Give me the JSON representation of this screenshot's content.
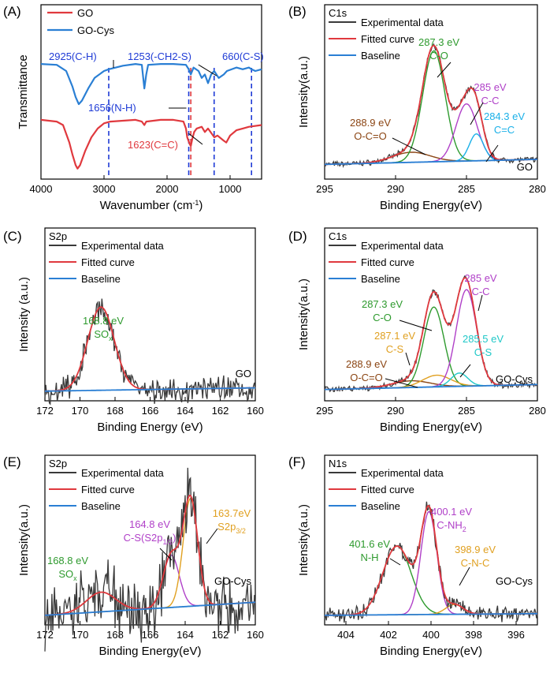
{
  "figure": {
    "description": "Six-panel spectroscopy figure: FTIR of GO and GO-Cys, and XPS high-resolution spectra",
    "colors": {
      "experimental": "#3a3a3a",
      "fitted": "#e0393e",
      "baseline": "#2a7fd4",
      "go": "#e0393e",
      "gocys": "#2a7fd4",
      "guide": "#1f3bd6"
    }
  },
  "chart_data": [
    {
      "id": "A",
      "type": "line",
      "panel_label": "(A)",
      "xlabel": "Wavenumber (cm",
      "xlabel_sup": "-1",
      "xlabel_end": ")",
      "ylabel": "Transmittance",
      "xlim": [
        4000,
        500
      ],
      "ylim": [
        0,
        1
      ],
      "xticks": [
        4000,
        3000,
        2000,
        1000
      ],
      "legend": [
        {
          "name": "GO",
          "color": "#e0393e"
        },
        {
          "name": "GO-Cys",
          "color": "#2a7fd4"
        }
      ],
      "guides": [
        2925,
        1656,
        1623,
        1253,
        660
      ],
      "annotations": [
        "2925(C-H)",
        "1253(-CH2-S)",
        "660(C-S)",
        "1656(N-H)",
        "1623(C=C)"
      ],
      "series": [
        {
          "name": "GO-Cys",
          "color": "#2a7fd4",
          "offset": 0.66,
          "points": [
            [
              4000,
              0.66
            ],
            [
              3750,
              0.655
            ],
            [
              3600,
              0.62
            ],
            [
              3500,
              0.53
            ],
            [
              3450,
              0.47
            ],
            [
              3400,
              0.43
            ],
            [
              3350,
              0.45
            ],
            [
              3250,
              0.52
            ],
            [
              3150,
              0.58
            ],
            [
              3000,
              0.62
            ],
            [
              2925,
              0.63
            ],
            [
              2700,
              0.65
            ],
            [
              2500,
              0.66
            ],
            [
              2400,
              0.655
            ],
            [
              2360,
              0.52
            ],
            [
              2330,
              0.6
            ],
            [
              2300,
              0.655
            ],
            [
              2100,
              0.66
            ],
            [
              1900,
              0.66
            ],
            [
              1700,
              0.655
            ],
            [
              1656,
              0.63
            ],
            [
              1623,
              0.6
            ],
            [
              1580,
              0.64
            ],
            [
              1500,
              0.62
            ],
            [
              1450,
              0.58
            ],
            [
              1400,
              0.6
            ],
            [
              1350,
              0.55
            ],
            [
              1300,
              0.6
            ],
            [
              1253,
              0.62
            ],
            [
              1180,
              0.58
            ],
            [
              1100,
              0.6
            ],
            [
              1050,
              0.62
            ],
            [
              900,
              0.64
            ],
            [
              800,
              0.63
            ],
            [
              700,
              0.64
            ],
            [
              660,
              0.63
            ],
            [
              600,
              0.62
            ],
            [
              500,
              0.63
            ]
          ]
        },
        {
          "name": "GO",
          "color": "#e0393e",
          "offset": 0.34,
          "points": [
            [
              4000,
              0.34
            ],
            [
              3750,
              0.33
            ],
            [
              3650,
              0.31
            ],
            [
              3550,
              0.21
            ],
            [
              3500,
              0.14
            ],
            [
              3450,
              0.08
            ],
            [
              3420,
              0.06
            ],
            [
              3380,
              0.08
            ],
            [
              3300,
              0.16
            ],
            [
              3200,
              0.24
            ],
            [
              3100,
              0.29
            ],
            [
              3000,
              0.32
            ],
            [
              2900,
              0.33
            ],
            [
              2500,
              0.34
            ],
            [
              2400,
              0.33
            ],
            [
              2360,
              0.31
            ],
            [
              2330,
              0.33
            ],
            [
              2100,
              0.34
            ],
            [
              1900,
              0.34
            ],
            [
              1740,
              0.33
            ],
            [
              1700,
              0.29
            ],
            [
              1680,
              0.24
            ],
            [
              1640,
              0.2
            ],
            [
              1623,
              0.19
            ],
            [
              1600,
              0.23
            ],
            [
              1570,
              0.27
            ],
            [
              1530,
              0.29
            ],
            [
              1450,
              0.3
            ],
            [
              1400,
              0.27
            ],
            [
              1350,
              0.29
            ],
            [
              1250,
              0.24
            ],
            [
              1200,
              0.25
            ],
            [
              1100,
              0.22
            ],
            [
              1060,
              0.21
            ],
            [
              1000,
              0.25
            ],
            [
              900,
              0.28
            ],
            [
              800,
              0.29
            ],
            [
              700,
              0.3
            ],
            [
              500,
              0.31
            ]
          ]
        }
      ]
    },
    {
      "id": "B",
      "type": "line",
      "panel_label": "(B)",
      "region": "C1s",
      "sample": "GO",
      "xlabel": "Binding Energy(eV)",
      "ylabel": "Intensity(a.u.)",
      "xlim": [
        295,
        280
      ],
      "ylim": [
        0,
        1
      ],
      "xticks": [
        295,
        290,
        285,
        280
      ],
      "legend": [
        "Experimental data",
        "Fitted curve",
        "Baseline"
      ],
      "peaks": [
        {
          "center": 288.9,
          "height": 0.06,
          "width": 1.6,
          "label": "288.9 eV",
          "bond": "O-C=O",
          "color": "#8b4513"
        },
        {
          "center": 287.3,
          "height": 0.66,
          "width": 0.95,
          "label": "287.3 eV",
          "bond": "C-O",
          "color": "#2e9a2e"
        },
        {
          "center": 285.0,
          "height": 0.34,
          "width": 0.9,
          "label": "285 eV",
          "bond": "C-C",
          "color": "#b040c8"
        },
        {
          "center": 284.3,
          "height": 0.16,
          "width": 0.6,
          "label": "284.3 eV",
          "bond": "C=C",
          "color": "#1ab0e8"
        }
      ],
      "baseline": [
        0.05,
        0.08
      ]
    },
    {
      "id": "C",
      "type": "line",
      "panel_label": "(C)",
      "region": "S2p",
      "sample": "GO",
      "xlabel": "Binding Energy (eV)",
      "ylabel": "Intensity (a.u.)",
      "xlim": [
        172,
        160
      ],
      "ylim": [
        0,
        1
      ],
      "xticks": [
        172,
        170,
        168,
        166,
        164,
        162,
        160
      ],
      "legend": [
        "Experimental data",
        "Fitted curve",
        "Baseline"
      ],
      "peaks": [
        {
          "center": 168.8,
          "height": 0.5,
          "width": 0.9,
          "label": "168.8 eV",
          "bond": "SO",
          "bond_sub": "x",
          "color": "#2e9a2e"
        }
      ],
      "baseline": [
        0.02,
        0.04
      ]
    },
    {
      "id": "D",
      "type": "line",
      "panel_label": "(D)",
      "region": "C1s",
      "sample": "GO-Cys",
      "xlabel": "Binding Energy(eV)",
      "ylabel": "Intensity(a.u.)",
      "xlim": [
        295,
        280
      ],
      "ylim": [
        0,
        1
      ],
      "xticks": [
        295,
        290,
        285,
        280
      ],
      "legend": [
        "Experimental data",
        "Fitted curve",
        "Baseline"
      ],
      "peaks": [
        {
          "center": 288.9,
          "height": 0.04,
          "width": 1.6,
          "label": "288.9 eV",
          "bond": "O-C=O",
          "color": "#8b4513"
        },
        {
          "center": 287.3,
          "height": 0.48,
          "width": 0.85,
          "label": "287.3 eV",
          "bond": "C-O",
          "color": "#2e9a2e"
        },
        {
          "center": 287.1,
          "height": 0.07,
          "width": 1.2,
          "label": "287.1 eV",
          "bond": "C-S",
          "color": "#e0a020"
        },
        {
          "center": 285.0,
          "height": 0.58,
          "width": 0.85,
          "label": "285 eV",
          "bond": "C-C",
          "color": "#b040c8"
        },
        {
          "center": 285.5,
          "height": 0.08,
          "width": 0.7,
          "label": "285.5 eV",
          "bond": "C-S",
          "color": "#20c8c8"
        }
      ],
      "baseline": [
        0.03,
        0.06
      ]
    },
    {
      "id": "E",
      "type": "line",
      "panel_label": "(E)",
      "region": "S2p",
      "sample": "GO-Cys",
      "xlabel": "Binding Energy(eV)",
      "ylabel": "Intensity(a.u.)",
      "xlim": [
        172,
        160
      ],
      "ylim": [
        0,
        1
      ],
      "xticks": [
        172,
        170,
        168,
        166,
        164,
        162,
        160
      ],
      "legend": [
        "Experimental data",
        "Fitted curve",
        "Baseline"
      ],
      "peaks": [
        {
          "center": 168.8,
          "height": 0.12,
          "width": 1.0,
          "label": "168.8 eV",
          "bond": "SO",
          "bond_sub": "x",
          "color": "#2e9a2e"
        },
        {
          "center": 164.8,
          "height": 0.32,
          "width": 0.55,
          "label": "164.8 eV",
          "bond": "C-S(S2p",
          "bond_sub": "1/2",
          "bond_end": ")",
          "color": "#b040c8"
        },
        {
          "center": 163.7,
          "height": 0.66,
          "width": 0.5,
          "label": "163.7eV",
          "bond": "S2p",
          "bond_sub": "3/2",
          "color": "#e0a020"
        }
      ],
      "baseline": [
        0.02,
        0.1
      ]
    },
    {
      "id": "F",
      "type": "line",
      "panel_label": "(F)",
      "region": "N1s",
      "sample": "GO-Cys",
      "xlabel": "Binding Energy(eV)",
      "ylabel": "Intensity(a.u.)",
      "xlim": [
        405,
        395
      ],
      "ylim": [
        0,
        1
      ],
      "xticks": [
        404,
        402,
        400,
        398,
        396
      ],
      "legend": [
        "Experimental data",
        "Fitted curve",
        "Baseline"
      ],
      "peaks": [
        {
          "center": 401.6,
          "height": 0.42,
          "width": 0.8,
          "label": "401.6 eV",
          "bond": "N-H",
          "color": "#2e9a2e"
        },
        {
          "center": 400.1,
          "height": 0.63,
          "width": 0.45,
          "label": "400.1 eV",
          "bond": "C-NH",
          "bond_sub": "2",
          "color": "#b040c8"
        },
        {
          "center": 398.9,
          "height": 0.06,
          "width": 0.5,
          "label": "398.9 eV",
          "bond": "C-N-C",
          "color": "#e0a020"
        }
      ],
      "baseline": [
        0.02,
        0.03
      ]
    }
  ]
}
